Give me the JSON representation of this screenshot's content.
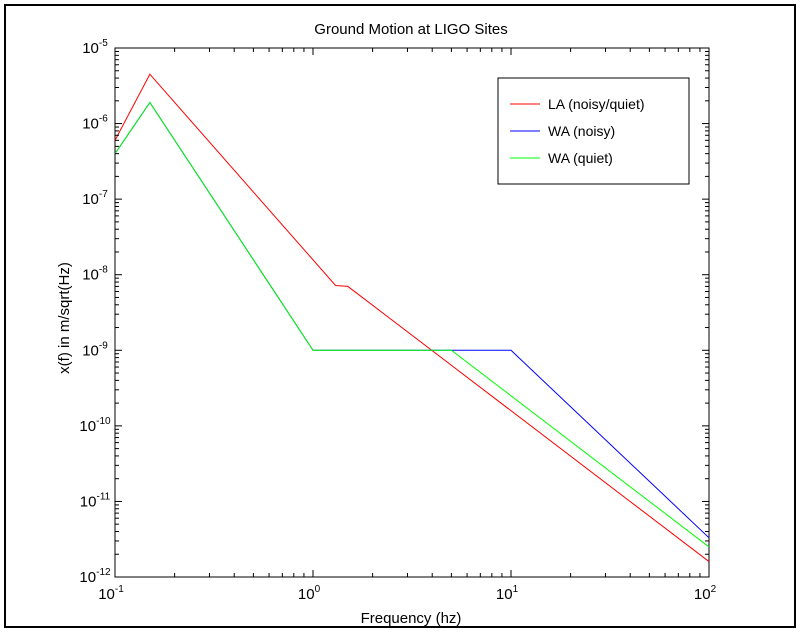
{
  "chart_data": {
    "type": "line",
    "title": "Ground Motion at LIGO Sites",
    "xlabel": "Frequency (hz)",
    "ylabel": "x(f) in m/sqrt(Hz)",
    "x_scale": "log",
    "y_scale": "log",
    "xlim": [
      0.1,
      100
    ],
    "ylim": [
      1e-12,
      1e-05
    ],
    "x_ticks": [
      {
        "value": 0.1,
        "base": "10",
        "exp": "-1"
      },
      {
        "value": 1,
        "base": "10",
        "exp": "0"
      },
      {
        "value": 10,
        "base": "10",
        "exp": "1"
      },
      {
        "value": 100,
        "base": "10",
        "exp": "2"
      }
    ],
    "y_ticks": [
      {
        "value": 1e-12,
        "base": "10",
        "exp": "-12"
      },
      {
        "value": 1e-11,
        "base": "10",
        "exp": "-11"
      },
      {
        "value": 1e-10,
        "base": "10",
        "exp": "-10"
      },
      {
        "value": 1e-09,
        "base": "10",
        "exp": "-9"
      },
      {
        "value": 1e-08,
        "base": "10",
        "exp": "-8"
      },
      {
        "value": 1e-07,
        "base": "10",
        "exp": "-7"
      },
      {
        "value": 1e-06,
        "base": "10",
        "exp": "-6"
      },
      {
        "value": 1e-05,
        "base": "10",
        "exp": "-5"
      }
    ],
    "grid": false,
    "legend_position": "top-right",
    "series": [
      {
        "name": "LA (noisy/quiet)",
        "color": "#ff0000",
        "points": [
          [
            0.1,
            6e-07
          ],
          [
            0.15,
            4.5e-06
          ],
          [
            1.3,
            7.2e-09
          ],
          [
            1.5,
            7e-09
          ],
          [
            100,
            1.6e-12
          ]
        ]
      },
      {
        "name": "WA (noisy)",
        "color": "#0000ff",
        "points": [
          [
            0.1,
            4e-07
          ],
          [
            0.15,
            1.9e-06
          ],
          [
            1,
            1e-09
          ],
          [
            10,
            1e-09
          ],
          [
            100,
            3.3e-12
          ]
        ]
      },
      {
        "name": "WA (quiet)",
        "color": "#00ff00",
        "points": [
          [
            0.1,
            4e-07
          ],
          [
            0.15,
            1.9e-06
          ],
          [
            1,
            1e-09
          ],
          [
            5,
            1e-09
          ],
          [
            100,
            2.5e-12
          ]
        ]
      }
    ]
  }
}
